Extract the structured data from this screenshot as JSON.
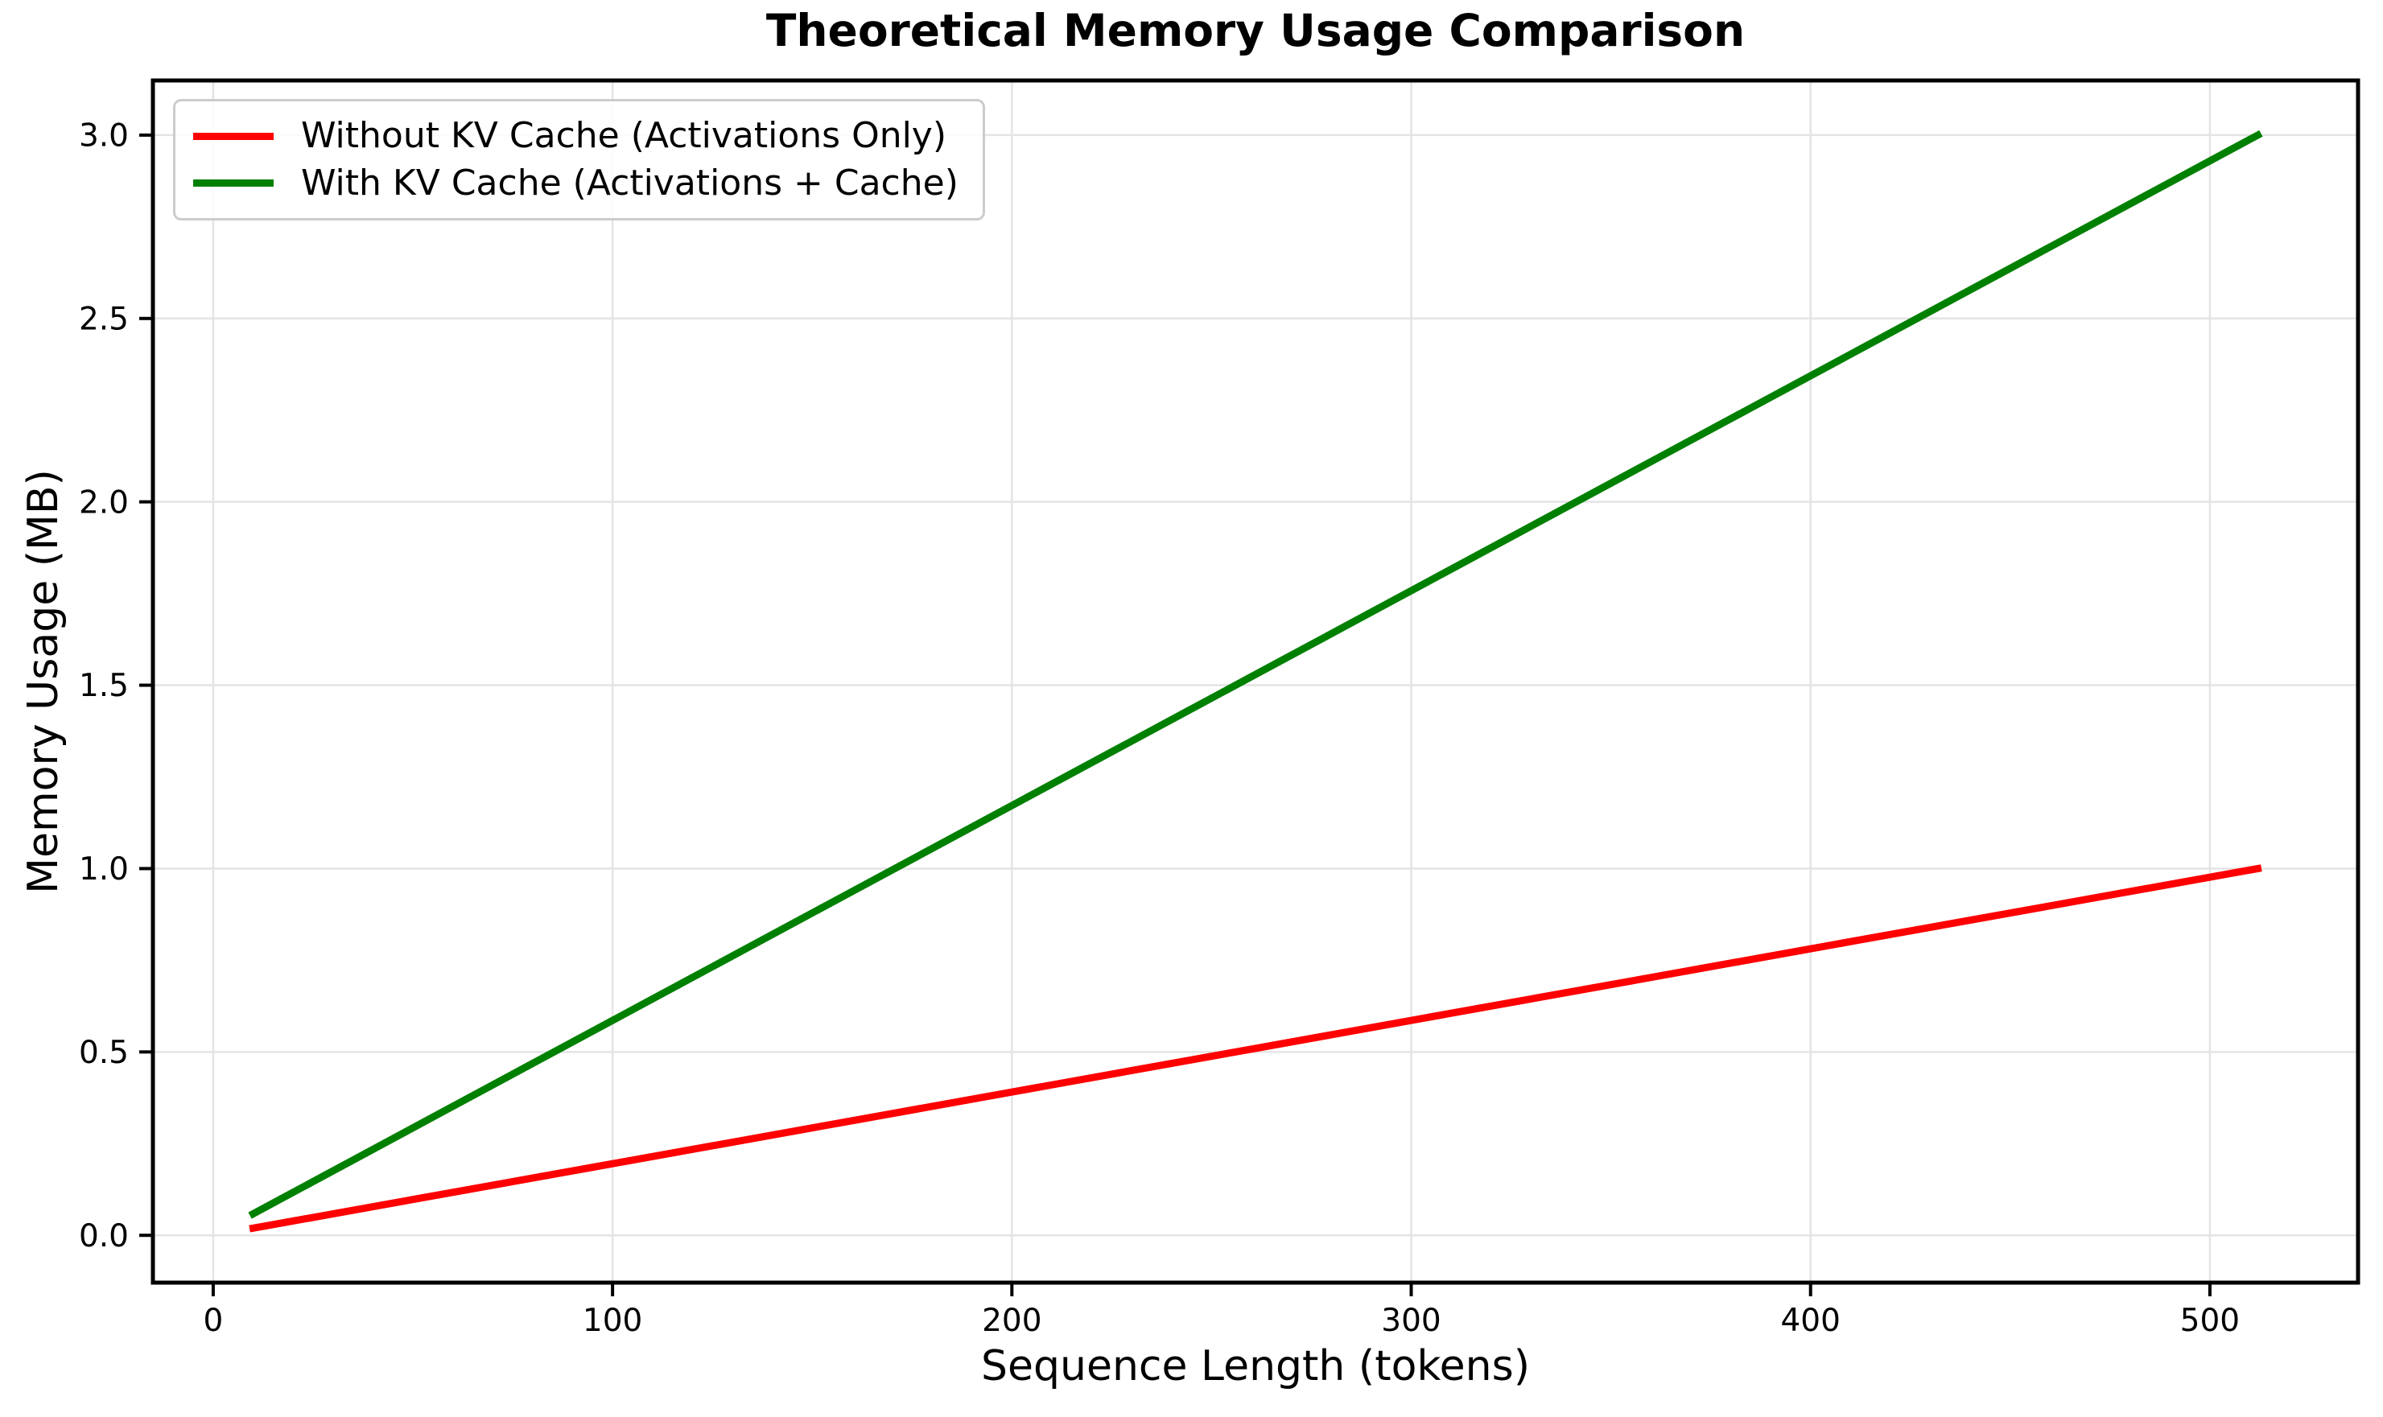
{
  "chart_data": {
    "type": "line",
    "title": "Theoretical Memory Usage Comparison",
    "xlabel": "Sequence Length (tokens)",
    "ylabel": "Memory Usage (MB)",
    "xlim": [
      -15.1,
      537.1
    ],
    "ylim": [
      -0.129,
      3.149
    ],
    "xticks": [
      0,
      100,
      200,
      300,
      400,
      500
    ],
    "xtick_labels": [
      "0",
      "100",
      "200",
      "300",
      "400",
      "500"
    ],
    "yticks": [
      0.0,
      0.5,
      1.0,
      1.5,
      2.0,
      2.5,
      3.0
    ],
    "ytick_labels": [
      "0.0",
      "0.5",
      "1.0",
      "1.5",
      "2.0",
      "2.5",
      "3.0"
    ],
    "grid": true,
    "grid_color": "#e4e4e4",
    "legend_position": "upper-left",
    "x": [
      10,
      60,
      110,
      160,
      210,
      260,
      310,
      360,
      410,
      460,
      512
    ],
    "series": [
      {
        "name": "Without KV Cache (Activations Only)",
        "color": "#ff0000",
        "values": [
          0.0195,
          0.1172,
          0.2148,
          0.3125,
          0.4102,
          0.5078,
          0.6055,
          0.7031,
          0.8008,
          0.8984,
          1.0
        ]
      },
      {
        "name": "With KV Cache (Activations + Cache)",
        "color": "#008000",
        "values": [
          0.0586,
          0.3516,
          0.6445,
          0.9375,
          1.2305,
          1.5234,
          1.8164,
          2.1094,
          2.4023,
          2.6953,
          3.0
        ]
      }
    ]
  }
}
